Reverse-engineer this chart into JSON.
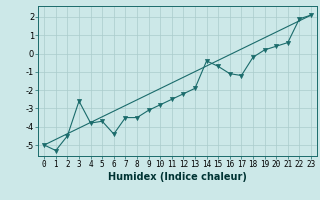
{
  "xlabel": "Humidex (Indice chaleur)",
  "background_color": "#cce8e8",
  "grid_color": "#aacccc",
  "line_color": "#1a6b6b",
  "xlim": [
    -0.5,
    23.5
  ],
  "ylim": [
    -5.6,
    2.6
  ],
  "yticks": [
    -5,
    -4,
    -3,
    -2,
    -1,
    0,
    1,
    2
  ],
  "xticks": [
    0,
    1,
    2,
    3,
    4,
    5,
    6,
    7,
    8,
    9,
    10,
    11,
    12,
    13,
    14,
    15,
    16,
    17,
    18,
    19,
    20,
    21,
    22,
    23
  ],
  "line1_x": [
    0,
    1,
    2,
    3,
    4,
    5,
    6,
    7,
    8,
    9,
    10,
    11,
    12,
    13,
    14,
    15,
    16,
    17,
    18,
    19,
    20,
    21,
    22,
    23
  ],
  "line1_y": [
    -5.0,
    -5.3,
    -4.5,
    -2.6,
    -3.8,
    -3.7,
    -4.4,
    -3.5,
    -3.5,
    -3.1,
    -2.8,
    -2.5,
    -2.2,
    -1.9,
    -0.4,
    -0.7,
    -1.1,
    -1.2,
    -0.2,
    0.2,
    0.4,
    0.6,
    1.9,
    2.1
  ],
  "line2_x": [
    0,
    23
  ],
  "line2_y": [
    -5.0,
    2.1
  ],
  "marker": "v",
  "marker_size": 3,
  "tick_fontsize": 5.5,
  "xlabel_fontsize": 7,
  "linewidth": 0.8
}
